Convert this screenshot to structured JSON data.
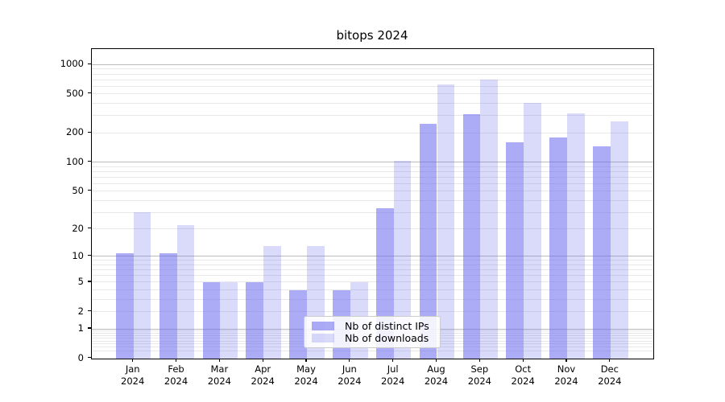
{
  "chart_data": {
    "type": "bar",
    "title": "bitops 2024",
    "categories": [
      "Jan 2024",
      "Feb 2024",
      "Mar 2024",
      "Apr 2024",
      "May 2024",
      "Jun 2024",
      "Jul 2024",
      "Aug 2024",
      "Sep 2024",
      "Oct 2024",
      "Nov 2024",
      "Dec 2024"
    ],
    "series": [
      {
        "name": "Nb of distinct IPs",
        "values": [
          11,
          11,
          5,
          5,
          4,
          4,
          33,
          250,
          310,
          160,
          180,
          145
        ]
      },
      {
        "name": "Nb of downloads",
        "values": [
          30,
          22,
          5,
          13,
          13,
          5,
          104,
          630,
          700,
          410,
          320,
          265
        ]
      }
    ],
    "y_ticks": [
      1000,
      500,
      200,
      100,
      50,
      20,
      10,
      5,
      2,
      1,
      0
    ],
    "y_scale": "log10(1+v)",
    "ylim": [
      0,
      1440
    ],
    "grid": "horizontal major and minor, no vertical grid",
    "legend_position": "lower center",
    "colors": {
      "bar_base": "#6666ee",
      "ips_alpha": 0.55,
      "downloads_alpha": 0.24,
      "grid_major": "#bbbbbb",
      "grid_minor": "#e8e8e8",
      "axis": "#000000",
      "legend_border": "#cccccc",
      "text": "#000000"
    }
  }
}
